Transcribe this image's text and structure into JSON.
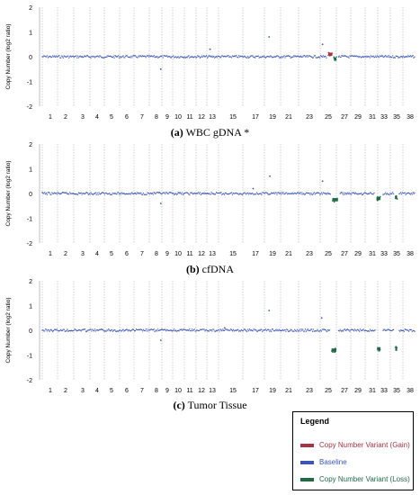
{
  "chart_data": [
    {
      "type": "scatter",
      "caption_label": "(a)",
      "caption_text": "WBC gDNA *",
      "ylabel": "Copy Number (log2 ratio)",
      "ylim": [
        -2,
        2
      ],
      "yticks": [
        "2",
        "1",
        "0",
        "-1",
        "-2"
      ],
      "xticks": [
        "1",
        "2",
        "3",
        "4",
        "5",
        "6",
        "7",
        "8",
        "9",
        "10",
        "11",
        "12",
        "13",
        "15",
        "17",
        "19",
        "21",
        "23",
        "25",
        "27",
        "29",
        "31",
        "33",
        "35",
        "38"
      ],
      "segments": [
        {
          "series": "Copy Number Variant (Gain)",
          "start": 25.0,
          "end": 25.5,
          "value": 0.1
        },
        {
          "series": "Copy Number Variant (Loss)",
          "start": 25.7,
          "end": 26.0,
          "value": -0.1
        }
      ],
      "outliers": [
        [
          8.4,
          -0.5
        ],
        [
          18.6,
          0.8
        ],
        [
          12.8,
          0.3
        ],
        [
          24.4,
          0.5
        ]
      ]
    },
    {
      "type": "scatter",
      "caption_label": "(b)",
      "caption_text": "cfDNA",
      "ylabel": "Copy Number (log2 ratio)",
      "ylim": [
        -2,
        2
      ],
      "yticks": [
        "2",
        "1",
        "0",
        "-1",
        "-2"
      ],
      "xticks": [
        "1",
        "2",
        "3",
        "4",
        "5",
        "6",
        "7",
        "8",
        "9",
        "10",
        "11",
        "12",
        "13",
        "15",
        "17",
        "19",
        "21",
        "23",
        "25",
        "27",
        "29",
        "31",
        "33",
        "35",
        "38"
      ],
      "segments": [
        {
          "series": "Copy Number Variant (Loss)",
          "start": 25.5,
          "end": 26.2,
          "value": -0.25
        },
        {
          "series": "Copy Number Variant (Loss)",
          "start": 31.7,
          "end": 32.4,
          "value": -0.2
        },
        {
          "series": "Copy Number Variant (Loss)",
          "start": 34.8,
          "end": 35.1,
          "value": -0.15
        }
      ],
      "outliers": [
        [
          8.4,
          -0.4
        ],
        [
          18.7,
          0.7
        ],
        [
          16.8,
          0.2
        ],
        [
          24.4,
          0.5
        ]
      ]
    },
    {
      "type": "scatter",
      "caption_label": "(c)",
      "caption_text": "Tumor Tissue",
      "ylabel": "Copy Number (log2 ratio)",
      "ylim": [
        -2,
        2
      ],
      "yticks": [
        "2",
        "1",
        "0",
        "-1",
        "-2"
      ],
      "xticks": [
        "1",
        "2",
        "3",
        "4",
        "5",
        "6",
        "7",
        "8",
        "9",
        "10",
        "11",
        "12",
        "13",
        "15",
        "17",
        "19",
        "21",
        "23",
        "25",
        "27",
        "29",
        "31",
        "33",
        "35",
        "38"
      ],
      "segments": [
        {
          "series": "Copy Number Variant (Loss)",
          "start": 25.4,
          "end": 26.0,
          "value": -0.8
        },
        {
          "series": "Copy Number Variant (Loss)",
          "start": 31.8,
          "end": 32.4,
          "value": -0.75
        },
        {
          "series": "Copy Number Variant (Loss)",
          "start": 34.8,
          "end": 35.1,
          "value": -0.75
        }
      ],
      "outliers": [
        [
          8.4,
          -0.4
        ],
        [
          18.6,
          0.8
        ],
        [
          24.3,
          0.5
        ],
        [
          14.2,
          0.1
        ]
      ]
    }
  ],
  "legend": {
    "title": "Legend",
    "items": [
      {
        "label": "Copy Number Variant (Gain)",
        "color": "#a83246"
      },
      {
        "label": "Baseline",
        "color": "#3a55b4"
      },
      {
        "label": "Copy Number Variant (Loss)",
        "color": "#1f6b45"
      }
    ]
  },
  "colors": {
    "baseline": "#3a55b4",
    "gain": "#a83246",
    "loss": "#1f6b45",
    "grid": "#b0b0b0"
  }
}
